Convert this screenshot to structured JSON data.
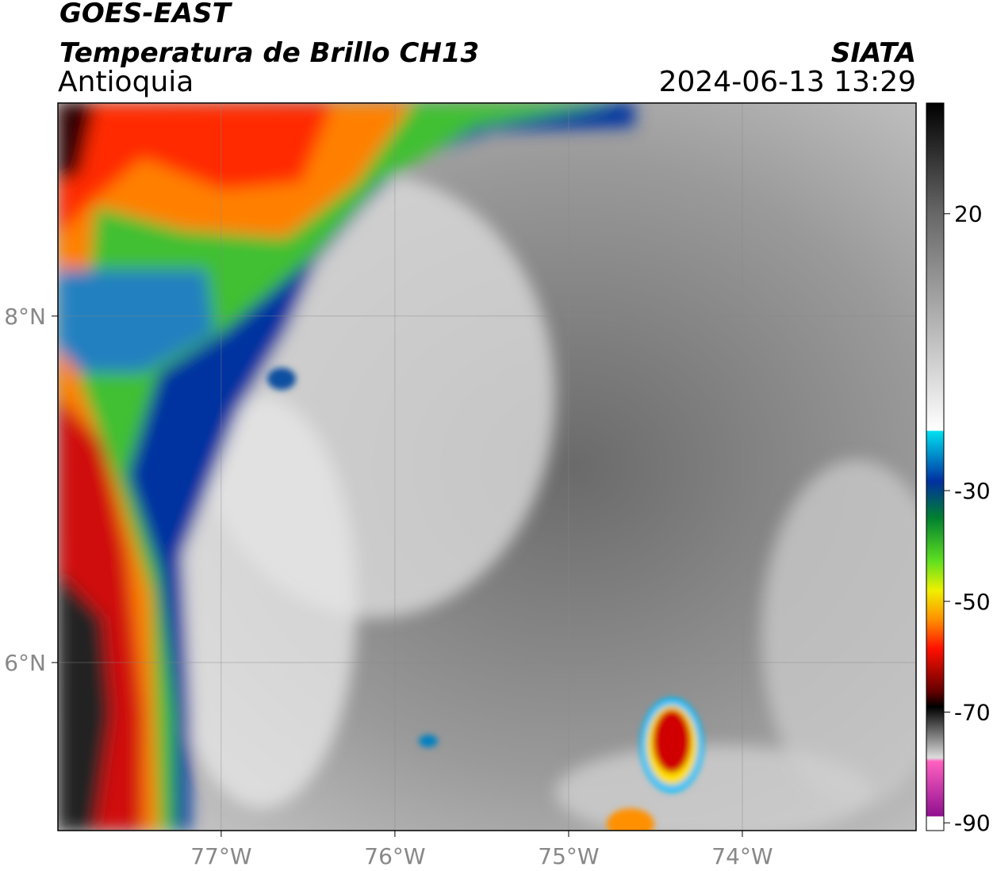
{
  "header": {
    "title": "GOES-EAST",
    "product": "Temperatura de Brillo CH13",
    "region": "Antioquia",
    "source": "SIATA",
    "timestamp": "2024-06-13 13:29"
  },
  "map": {
    "xlim": [
      -77.94,
      -73.0
    ],
    "ylim": [
      5.03,
      9.23
    ],
    "xticks": [
      {
        "value": -77,
        "label": "77°W"
      },
      {
        "value": -76,
        "label": "76°W"
      },
      {
        "value": -75,
        "label": "75°W"
      },
      {
        "value": -74,
        "label": "74°W"
      }
    ],
    "yticks": [
      {
        "value": 8,
        "label": "8°N"
      },
      {
        "value": 6,
        "label": "6°N"
      }
    ]
  },
  "colorbar": {
    "lim": [
      -91.4,
      40
    ],
    "ticks": [
      20,
      -30,
      -50,
      -70,
      -90
    ]
  }
}
